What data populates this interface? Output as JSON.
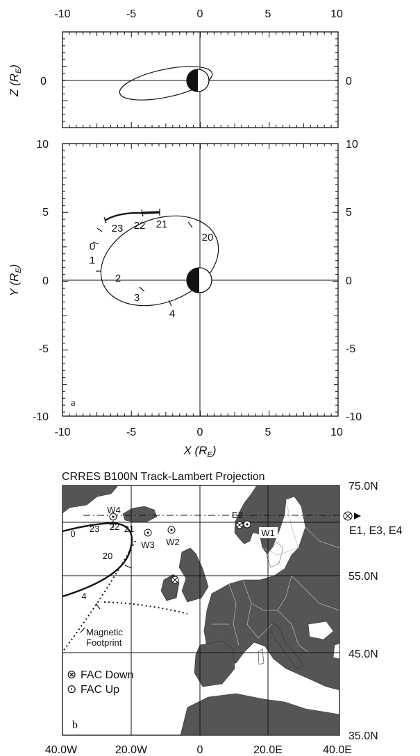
{
  "panel_a": {
    "label": "a",
    "x_ticks": [
      "-10",
      "-5",
      "0",
      "5",
      "10"
    ],
    "xz_z_ticks": [
      "0",
      "0"
    ],
    "xy_y_ticks": [
      "10",
      "5",
      "0",
      "-5",
      "-10"
    ],
    "xy_y_ticks_right": [
      "10",
      "5",
      "0",
      "-5",
      "-10"
    ],
    "x_axis_label": "X (R",
    "y_axis_label": "Y (R",
    "z_axis_label": "Z (R",
    "axis_subscript": "E",
    "axis_close": ")",
    "hour_labels": [
      "23",
      "22",
      "21",
      "20",
      "0",
      "1",
      "2",
      "3",
      "4"
    ]
  },
  "panel_b": {
    "label": "b",
    "title": "CRRES B100N Track-Lambert Projection",
    "lat_labels": [
      "75.0N",
      "55.0N",
      "45.0N",
      "35.0N"
    ],
    "lon_labels": [
      "40.0W",
      "20.0W",
      "0",
      "20.0E",
      "40.0E"
    ],
    "station_labels": [
      "W4",
      "W3",
      "W2",
      "W1",
      "E2"
    ],
    "east_group_label": "E1, E3, E4",
    "track_labels": [
      "0",
      "23",
      "22",
      "21",
      "20",
      "4"
    ],
    "footprint_label_1": "Magnetic",
    "footprint_label_2": "Footprint",
    "legend": {
      "down_symbol": "⊗",
      "down_label": "FAC Down",
      "up_symbol": "⊙",
      "up_label": "FAC Up"
    }
  }
}
